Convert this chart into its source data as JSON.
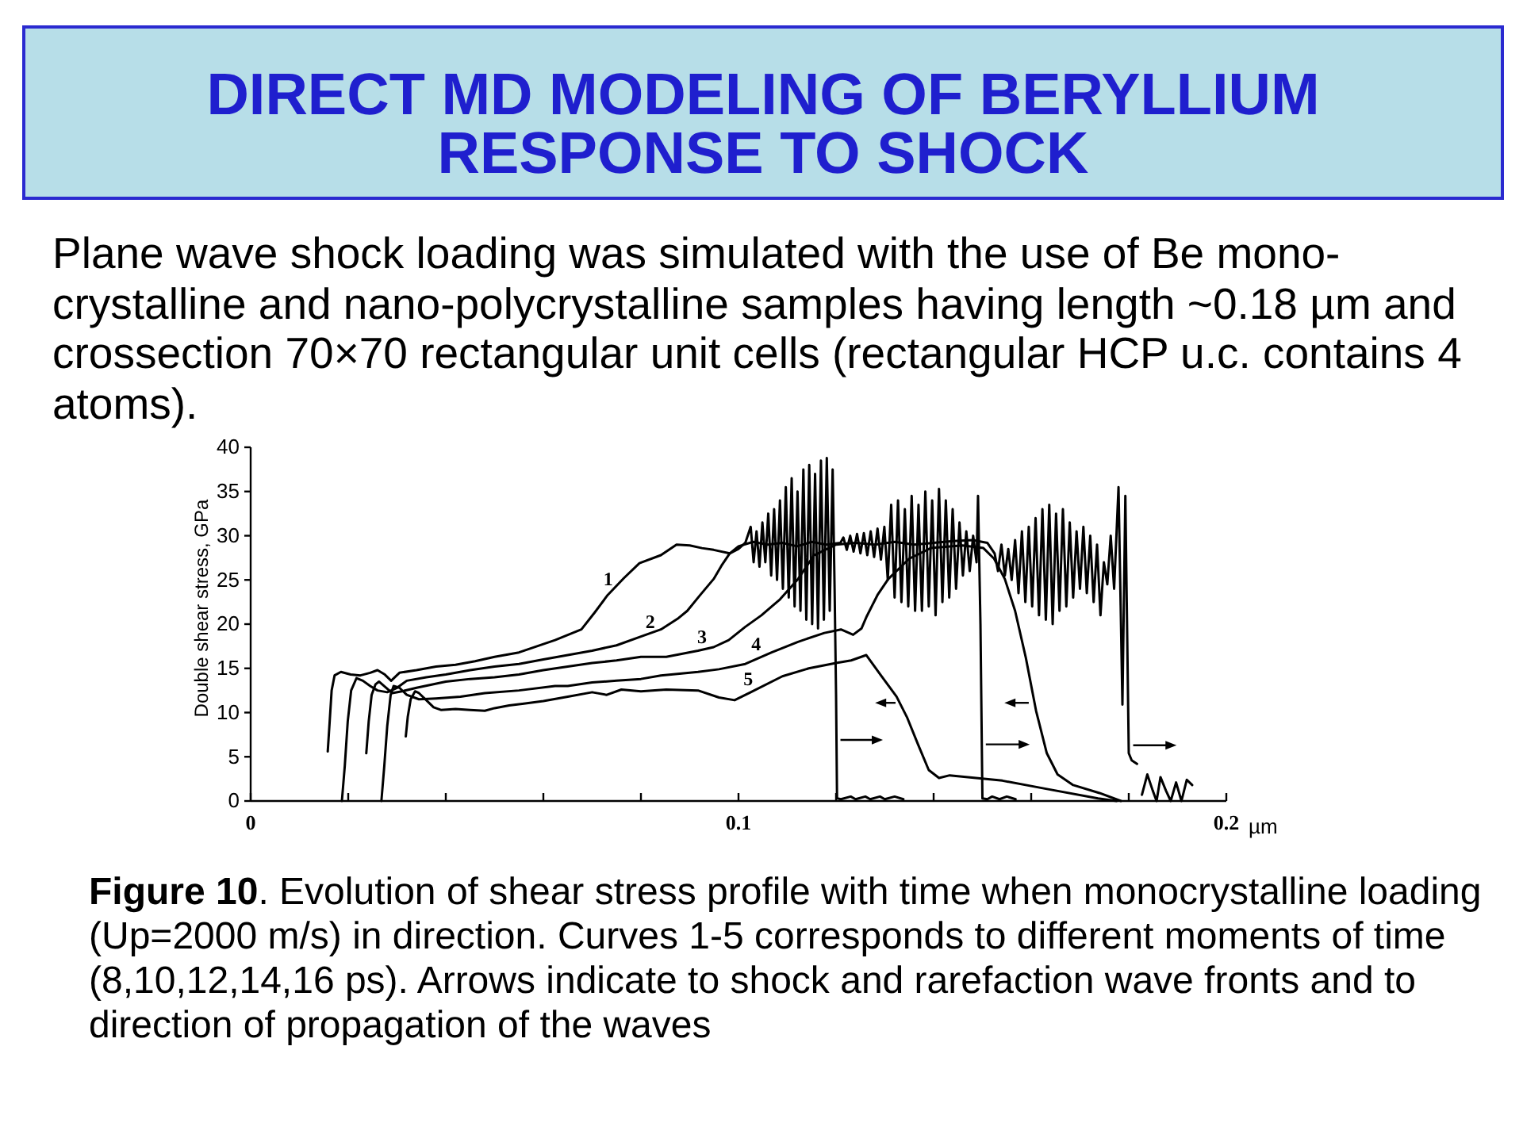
{
  "chart_data": {
    "type": "line",
    "title": "DIRECT MD MODELING OF BERYLLIUM RESPONSE TO SHOCK",
    "subtitle": "Plane wave shock loading was simulated with the use of Be mono-crystalline and nano-polycrystalline samples having length ~0.18 µm and crossection 70×70 rectangular unit cells (rectangular HCP u.c. contains 4 atoms).",
    "xlabel": "µm",
    "ylabel": "Double shear stress, GPa",
    "annotations": [
      "Figure 10. Evolution of shear stress profile with time when monocrystalline loading (Up=2000 m/s) in direction. Curves 1-5 corresponds to different moments of time (8,10,12,14,16 ps). Arrows indicate to shock and rarefaction wave fronts and to direction of propagation of the waves"
    ],
    "xlim": [
      0,
      0.2
    ],
    "ylim": [
      0,
      40
    ],
    "xticks": [
      0,
      {
        "value": 0.02,
        "label": null
      },
      {
        "value": 0.04,
        "label": null
      },
      {
        "value": 0.06,
        "label": null
      },
      {
        "value": 0.08,
        "label": null
      },
      0.1,
      {
        "value": 0.12,
        "label": null
      },
      {
        "value": 0.14,
        "label": null
      },
      {
        "value": 0.16,
        "label": null
      },
      {
        "value": 0.18,
        "label": null
      },
      0.2
    ],
    "yticks": [
      0,
      5,
      10,
      15,
      20,
      25,
      30,
      35,
      40
    ],
    "series": [
      {
        "name": "1",
        "color": "#000000",
        "x": [
          0.0158,
          0.0162,
          0.0166,
          0.0172,
          0.0185,
          0.0205,
          0.0225,
          0.0245,
          0.026,
          0.0275,
          0.0288,
          0.0305,
          0.034,
          0.038,
          0.042,
          0.046,
          0.05,
          0.055,
          0.0624,
          0.0678,
          0.0705,
          0.0732,
          0.0765,
          0.0797,
          0.0841,
          0.0873,
          0.09,
          0.0925,
          0.0949,
          0.0982,
          0.1,
          0.1014,
          0.1025,
          0.1031,
          0.1037,
          0.1043,
          0.1049,
          0.1055,
          0.1061,
          0.1067,
          0.1073,
          0.1079,
          0.1085,
          0.1091,
          0.1097,
          0.1103,
          0.1109,
          0.1115,
          0.1121,
          0.1127,
          0.1133,
          0.1139,
          0.1145,
          0.1151,
          0.1157,
          0.1163,
          0.1169,
          0.1175,
          0.1181,
          0.1187,
          0.1193,
          0.1197,
          0.12,
          0.1202,
          0.121,
          0.123,
          0.124,
          0.126,
          0.127,
          0.129,
          0.13,
          0.132,
          0.1338
        ],
        "values": [
          5.6,
          9,
          12.5,
          14.2,
          14.6,
          14.3,
          14.2,
          14.5,
          14.8,
          14.3,
          13.6,
          14.5,
          14.8,
          15.2,
          15.4,
          15.8,
          16.3,
          16.8,
          18.2,
          19.4,
          21.3,
          23.3,
          25.2,
          26.9,
          27.8,
          29.0,
          28.9,
          28.6,
          28.4,
          28.0,
          28.5,
          29.2,
          31.0,
          27.0,
          30.5,
          26.5,
          31.5,
          27.0,
          32.5,
          25.5,
          33.0,
          25.0,
          34.0,
          24.0,
          35.5,
          23.0,
          36.5,
          22.0,
          35.0,
          21.5,
          37.5,
          20.5,
          38.0,
          20.0,
          37.0,
          19.5,
          38.5,
          20.5,
          38.8,
          21.5,
          37.5,
          24,
          12,
          0.3,
          0.2,
          0.5,
          0.2,
          0.5,
          0.2,
          0.5,
          0.2,
          0.5,
          0.2
        ]
      },
      {
        "name": "2",
        "color": "#000000",
        "x": [
          0.0187,
          0.0193,
          0.0199,
          0.0206,
          0.0217,
          0.023,
          0.0245,
          0.026,
          0.028,
          0.03,
          0.032,
          0.036,
          0.04,
          0.045,
          0.05,
          0.055,
          0.06,
          0.065,
          0.07,
          0.075,
          0.08,
          0.0841,
          0.0875,
          0.0895,
          0.092,
          0.0949,
          0.0965,
          0.0982,
          0.1,
          0.103,
          0.106,
          0.109,
          0.112,
          0.115,
          0.118,
          0.1209,
          0.1215,
          0.1222,
          0.1229,
          0.1236,
          0.1243,
          0.125,
          0.1257,
          0.1264,
          0.1271,
          0.1278,
          0.1285,
          0.1292,
          0.1299,
          0.1306,
          0.1313,
          0.132,
          0.1327,
          0.1334,
          0.1341,
          0.1348,
          0.1355,
          0.1362,
          0.1369,
          0.1376,
          0.1383,
          0.139,
          0.1397,
          0.1404,
          0.1411,
          0.1418,
          0.1425,
          0.1432,
          0.1439,
          0.1446,
          0.1453,
          0.146,
          0.1467,
          0.1474,
          0.1481,
          0.1488,
          0.1491,
          0.1496,
          0.15,
          0.151,
          0.152,
          0.1535,
          0.155,
          0.1568
        ],
        "values": [
          0,
          4,
          9,
          12.5,
          13.9,
          13.6,
          13.0,
          12.5,
          12.3,
          12.8,
          13.6,
          14.0,
          14.3,
          14.8,
          15.2,
          15.5,
          16.0,
          16.5,
          17.0,
          17.6,
          18.6,
          19.4,
          20.6,
          21.5,
          23.2,
          25.1,
          26.6,
          28.0,
          28.8,
          29.3,
          29.0,
          29.2,
          28.8,
          29.3,
          29.0,
          29.2,
          29.8,
          28.4,
          30.0,
          28.2,
          30.2,
          28.0,
          30.3,
          27.8,
          30.5,
          27.6,
          30.8,
          27.3,
          31.0,
          25.0,
          33.5,
          23.0,
          34.0,
          22.5,
          33.0,
          22.0,
          34.5,
          21.5,
          33.5,
          21.5,
          35.0,
          22.0,
          34.0,
          21.0,
          35.3,
          22.5,
          34.0,
          23.0,
          33.0,
          24.0,
          31.5,
          25.5,
          30.5,
          26.0,
          30.0,
          27.0,
          34.5,
          20,
          0.3,
          0.2,
          0.5,
          0.2,
          0.5,
          0.2
        ]
      },
      {
        "name": "3",
        "color": "#000000",
        "x": [
          0.0237,
          0.0242,
          0.0248,
          0.0256,
          0.0263,
          0.0278,
          0.029,
          0.031,
          0.034,
          0.04,
          0.045,
          0.05,
          0.055,
          0.06,
          0.065,
          0.07,
          0.075,
          0.08,
          0.0852,
          0.0917,
          0.0949,
          0.098,
          0.1014,
          0.1047,
          0.1085,
          0.1122,
          0.1155,
          0.12,
          0.124,
          0.128,
          0.132,
          0.136,
          0.14,
          0.144,
          0.148,
          0.151,
          0.1525,
          0.1532,
          0.1539,
          0.1546,
          0.1553,
          0.156,
          0.1567,
          0.1574,
          0.1581,
          0.1588,
          0.1595,
          0.1602,
          0.1609,
          0.1616,
          0.1623,
          0.163,
          0.1637,
          0.1644,
          0.1651,
          0.1658,
          0.1665,
          0.1672,
          0.1679,
          0.1686,
          0.1693,
          0.17,
          0.1707,
          0.1714,
          0.1721,
          0.1728,
          0.1735,
          0.1742,
          0.1749,
          0.1756,
          0.1763,
          0.177,
          0.1779,
          0.1787,
          0.1793,
          0.18,
          0.1806,
          0.1817,
          0.1822,
          0.1827,
          0.1838,
          0.1849,
          0.1857,
          0.1865,
          0.1876,
          0.1886,
          0.1897,
          0.1908,
          0.1919,
          0.193
        ],
        "values": [
          5.4,
          9,
          12,
          13.2,
          13.5,
          12.8,
          12.2,
          12.4,
          12.8,
          13.5,
          13.8,
          14.0,
          14.3,
          14.8,
          15.2,
          15.6,
          15.9,
          16.3,
          16.3,
          17.0,
          17.4,
          18.2,
          19.7,
          21.0,
          22.8,
          25.1,
          27.8,
          29.0,
          29.2,
          29.0,
          29.3,
          29.0,
          29.2,
          29.4,
          29.5,
          29.2,
          28.0,
          26.0,
          29.0,
          25.5,
          28.5,
          25.0,
          29.5,
          23.5,
          30.5,
          22.5,
          31.0,
          22.0,
          32.0,
          21.0,
          33.0,
          20.5,
          33.5,
          20.0,
          32.5,
          21.5,
          33.0,
          22.0,
          31.5,
          23.0,
          30.5,
          24.0,
          31.0,
          23.5,
          30.0,
          22.5,
          29.0,
          21.0,
          27.0,
          24.5,
          30.0,
          24.0,
          35.5,
          10.9,
          34.5,
          5.4,
          4.6,
          4.2,
          null,
          0.7,
          3.0,
          1.2,
          0,
          2.7,
          1.2,
          0,
          2.1,
          0,
          2.4,
          1.8
        ]
      },
      {
        "name": "4",
        "color": "#000000",
        "x": [
          0.0268,
          0.0274,
          0.028,
          0.0287,
          0.0293,
          0.0305,
          0.032,
          0.0345,
          0.038,
          0.043,
          0.048,
          0.055,
          0.0624,
          0.065,
          0.07,
          0.075,
          0.08,
          0.0841,
          0.0917,
          0.096,
          0.1014,
          0.1068,
          0.1122,
          0.1176,
          0.121,
          0.1235,
          0.1252,
          0.1263,
          0.1285,
          0.1307,
          0.135,
          0.1394,
          0.1459,
          0.1502,
          0.1524,
          0.1546,
          0.1567,
          0.1589,
          0.161,
          0.1632,
          0.1654,
          0.1686,
          0.174,
          0.1784
        ],
        "values": [
          0,
          4,
          8.5,
          12,
          13.0,
          12.8,
          12.0,
          11.5,
          11.6,
          11.8,
          12.2,
          12.5,
          13.0,
          13.0,
          13.4,
          13.6,
          13.8,
          14.2,
          14.6,
          14.9,
          15.5,
          16.8,
          18.0,
          19.0,
          19.4,
          18.8,
          19.5,
          20.9,
          23.3,
          25.1,
          27.4,
          28.6,
          28.9,
          28.6,
          27.4,
          25.1,
          21.5,
          16.2,
          10.2,
          5.4,
          3.0,
          1.8,
          0.9,
          0
        ]
      },
      {
        "name": "5",
        "color": "#000000",
        "x": [
          0.0318,
          0.0322,
          0.0328,
          0.0337,
          0.0345,
          0.036,
          0.0375,
          0.039,
          0.042,
          0.045,
          0.048,
          0.05,
          0.053,
          0.056,
          0.06,
          0.065,
          0.07,
          0.073,
          0.076,
          0.08,
          0.0852,
          0.0917,
          0.096,
          0.0992,
          0.1025,
          0.109,
          0.1144,
          0.12,
          0.1231,
          0.1262,
          0.1292,
          0.1324,
          0.1346,
          0.1368,
          0.139,
          0.1411,
          0.1433,
          0.1487,
          0.1541,
          0.1628,
          0.1737,
          0.1775
        ],
        "values": [
          7.3,
          9.5,
          11.5,
          12.4,
          12.2,
          11.4,
          10.6,
          10.3,
          10.4,
          10.3,
          10.2,
          10.5,
          10.8,
          11.0,
          11.3,
          11.8,
          12.3,
          12.0,
          12.6,
          12.4,
          12.6,
          12.5,
          11.7,
          11.4,
          12.3,
          14.1,
          15.0,
          15.6,
          15.9,
          16.5,
          14.2,
          11.8,
          9.4,
          6.4,
          3.5,
          2.6,
          2.9,
          2.6,
          2.3,
          1.4,
          0.3,
          0
        ]
      }
    ]
  }
}
